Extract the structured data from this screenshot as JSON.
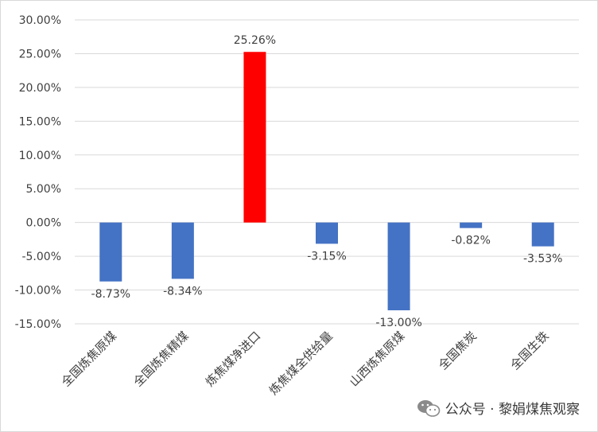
{
  "chart_data": {
    "type": "bar",
    "title": "",
    "xlabel": "",
    "ylabel": "",
    "categories": [
      "全国炼焦原煤",
      "全国炼焦精煤",
      "炼焦煤净进口",
      "炼焦煤全供给量",
      "山西炼焦原煤",
      "全国焦炭",
      "全国生铁"
    ],
    "values": [
      -8.73,
      -8.34,
      25.26,
      -3.15,
      -13.0,
      -0.82,
      -3.53
    ],
    "data_labels": [
      "-8.73%",
      "-8.34%",
      "25.26%",
      "-3.15%",
      "-13.00%",
      "-0.82%",
      "-3.53%"
    ],
    "y_ticks": [
      30,
      25,
      20,
      15,
      10,
      5,
      0,
      -5,
      -10,
      -15
    ],
    "y_tick_labels": [
      "30.00%",
      "25.00%",
      "20.00%",
      "15.00%",
      "10.00%",
      "5.00%",
      "0.00%",
      "-5.00%",
      "-10.00%",
      "-15.00%"
    ],
    "ylim": [
      -15,
      30
    ],
    "grid": true,
    "legend": "none",
    "colors": {
      "negative": "#4472C4",
      "positive": "#FF0000",
      "grid": "#D9D9D9",
      "text": "#404040"
    }
  },
  "watermark": {
    "text": "公众号 · 黎娟煤焦观察",
    "icon": "wechat-icon"
  }
}
